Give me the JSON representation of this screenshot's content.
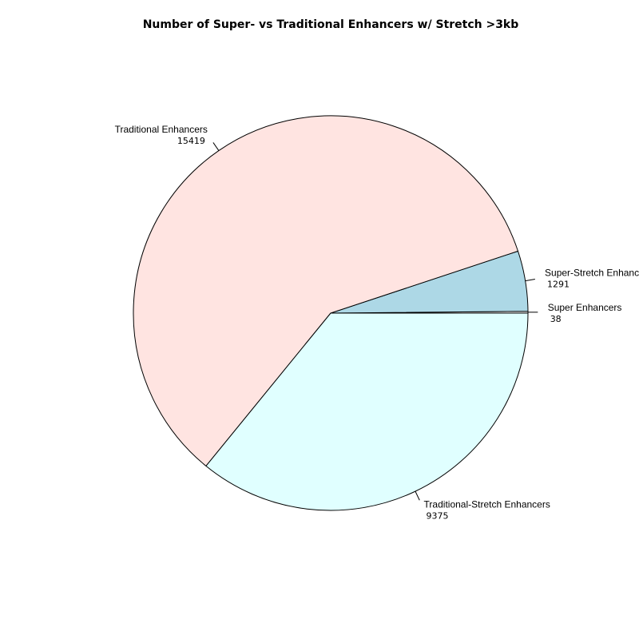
{
  "chart_data": {
    "type": "pie",
    "title": "Number of Super- vs Traditional Enhancers w/ Stretch >3kb",
    "slices": [
      {
        "label": "Super Enhancers",
        "value": 38,
        "value_label": "38",
        "color": "#FFFFFF"
      },
      {
        "label": "Super-Stretch Enhancers",
        "value": 1291,
        "value_label": "1291",
        "color": "#ADD8E6"
      },
      {
        "label": "Traditional Enhancers",
        "value": 15419,
        "value_label": "15419",
        "color": "#FFE4E1"
      },
      {
        "label": "Traditional-Stretch Enhancers",
        "value": 9375,
        "value_label": "9375",
        "color": "#E0FFFF"
      }
    ],
    "start_angle_deg": 0,
    "direction": "counterclockwise"
  }
}
